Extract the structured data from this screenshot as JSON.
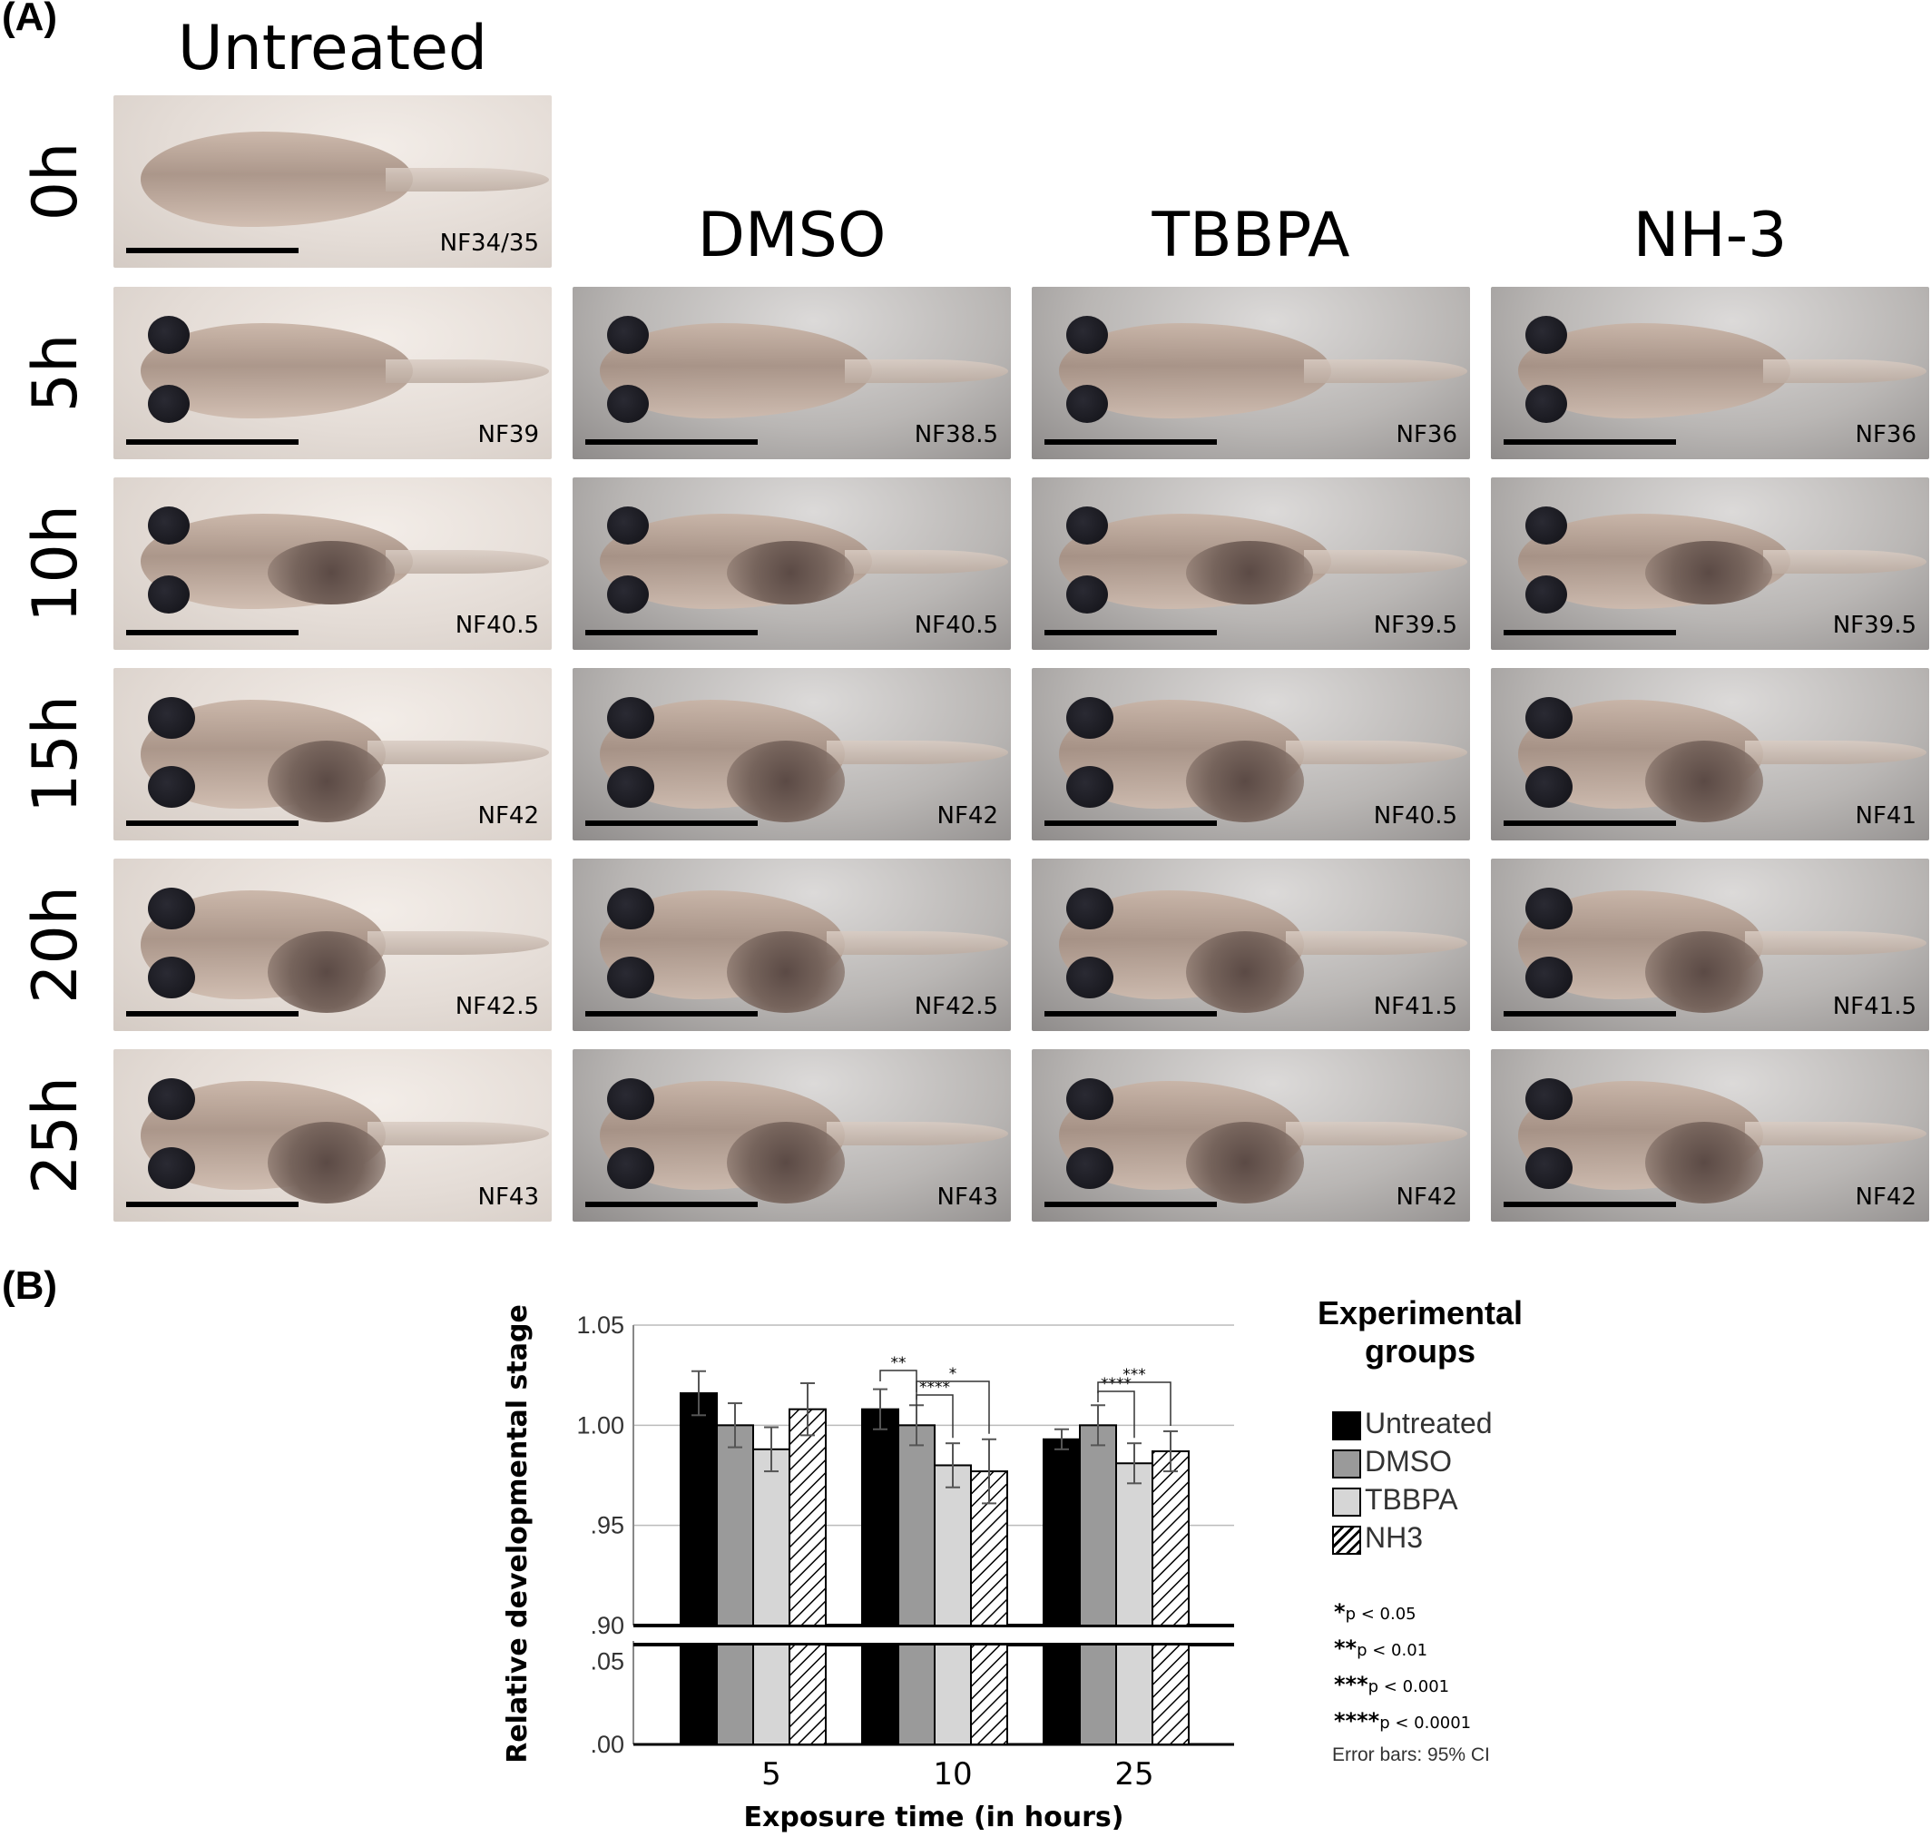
{
  "panel_a_label": "(A)",
  "panel_b_label": "(B)",
  "columns": [
    "Untreated",
    "DMSO",
    "TBBPA",
    "NH-3"
  ],
  "rows": [
    "0h",
    "5h",
    "10h",
    "15h",
    "20h",
    "25h"
  ],
  "stages": [
    [
      "NF34/35",
      null,
      null,
      null
    ],
    [
      "NF39",
      "NF38.5",
      "NF36",
      "NF36"
    ],
    [
      "NF40.5",
      "NF40.5",
      "NF39.5",
      "NF39.5"
    ],
    [
      "NF42",
      "NF42",
      "NF40.5",
      "NF41"
    ],
    [
      "NF42.5",
      "NF42.5",
      "NF41.5",
      "NF41.5"
    ],
    [
      "NF43",
      "NF43",
      "NF42",
      "NF42"
    ]
  ],
  "chart_data": {
    "type": "bar",
    "xlabel": "Exposure time (in hours)",
    "ylabel": "Relative developmental stage",
    "categories": [
      "5",
      "10",
      "25"
    ],
    "y_ticks_upper": [
      "1.05",
      "1.00",
      ".95",
      ".90"
    ],
    "y_ticks_lower": [
      ".05",
      ".00"
    ],
    "ylim_upper": [
      0.9,
      1.05
    ],
    "ylim_lower": [
      0.0,
      0.06
    ],
    "axis_break": true,
    "grid": true,
    "series": [
      {
        "name": "Untreated",
        "values": [
          1.016,
          1.008,
          0.993
        ],
        "ci_low": [
          1.005,
          0.998,
          0.988
        ],
        "ci_high": [
          1.027,
          1.018,
          0.998
        ],
        "color": "#000000",
        "pattern": "solid"
      },
      {
        "name": "DMSO",
        "values": [
          1.0,
          1.0,
          1.0
        ],
        "ci_low": [
          0.989,
          0.99,
          0.99
        ],
        "ci_high": [
          1.011,
          1.01,
          1.01
        ],
        "color": "#9a9a9a",
        "pattern": "solid"
      },
      {
        "name": "TBBPA",
        "values": [
          0.988,
          0.98,
          0.981
        ],
        "ci_low": [
          0.977,
          0.969,
          0.971
        ],
        "ci_high": [
          0.999,
          0.991,
          0.991
        ],
        "color": "#d6d6d6",
        "pattern": "solid"
      },
      {
        "name": "NH3",
        "values": [
          1.008,
          0.977,
          0.987
        ],
        "ci_low": [
          0.995,
          0.961,
          0.977
        ],
        "ci_high": [
          1.021,
          0.993,
          0.997
        ],
        "color": "#ffffff",
        "pattern": "hatch"
      }
    ],
    "significance": [
      {
        "category": "10",
        "from": "Untreated",
        "to": "DMSO",
        "label": "**"
      },
      {
        "category": "10",
        "from": "DMSO",
        "to": "TBBPA",
        "label": "****"
      },
      {
        "category": "10",
        "from": "DMSO",
        "to": "NH3",
        "label": "*"
      },
      {
        "category": "25",
        "from": "DMSO",
        "to": "TBBPA",
        "label": "****"
      },
      {
        "category": "25",
        "from": "DMSO",
        "to": "NH3",
        "label": "***"
      }
    ],
    "legend_title": "Experimental groups",
    "legend_placement": "right",
    "sig_legend": [
      {
        "stars": "*",
        "text": "p < 0.05"
      },
      {
        "stars": "**",
        "text": "p < 0.01"
      },
      {
        "stars": "***",
        "text": "p < 0.001"
      },
      {
        "stars": "****",
        "text": "p < 0.0001"
      }
    ],
    "error_note": "Error bars: 95% CI"
  }
}
